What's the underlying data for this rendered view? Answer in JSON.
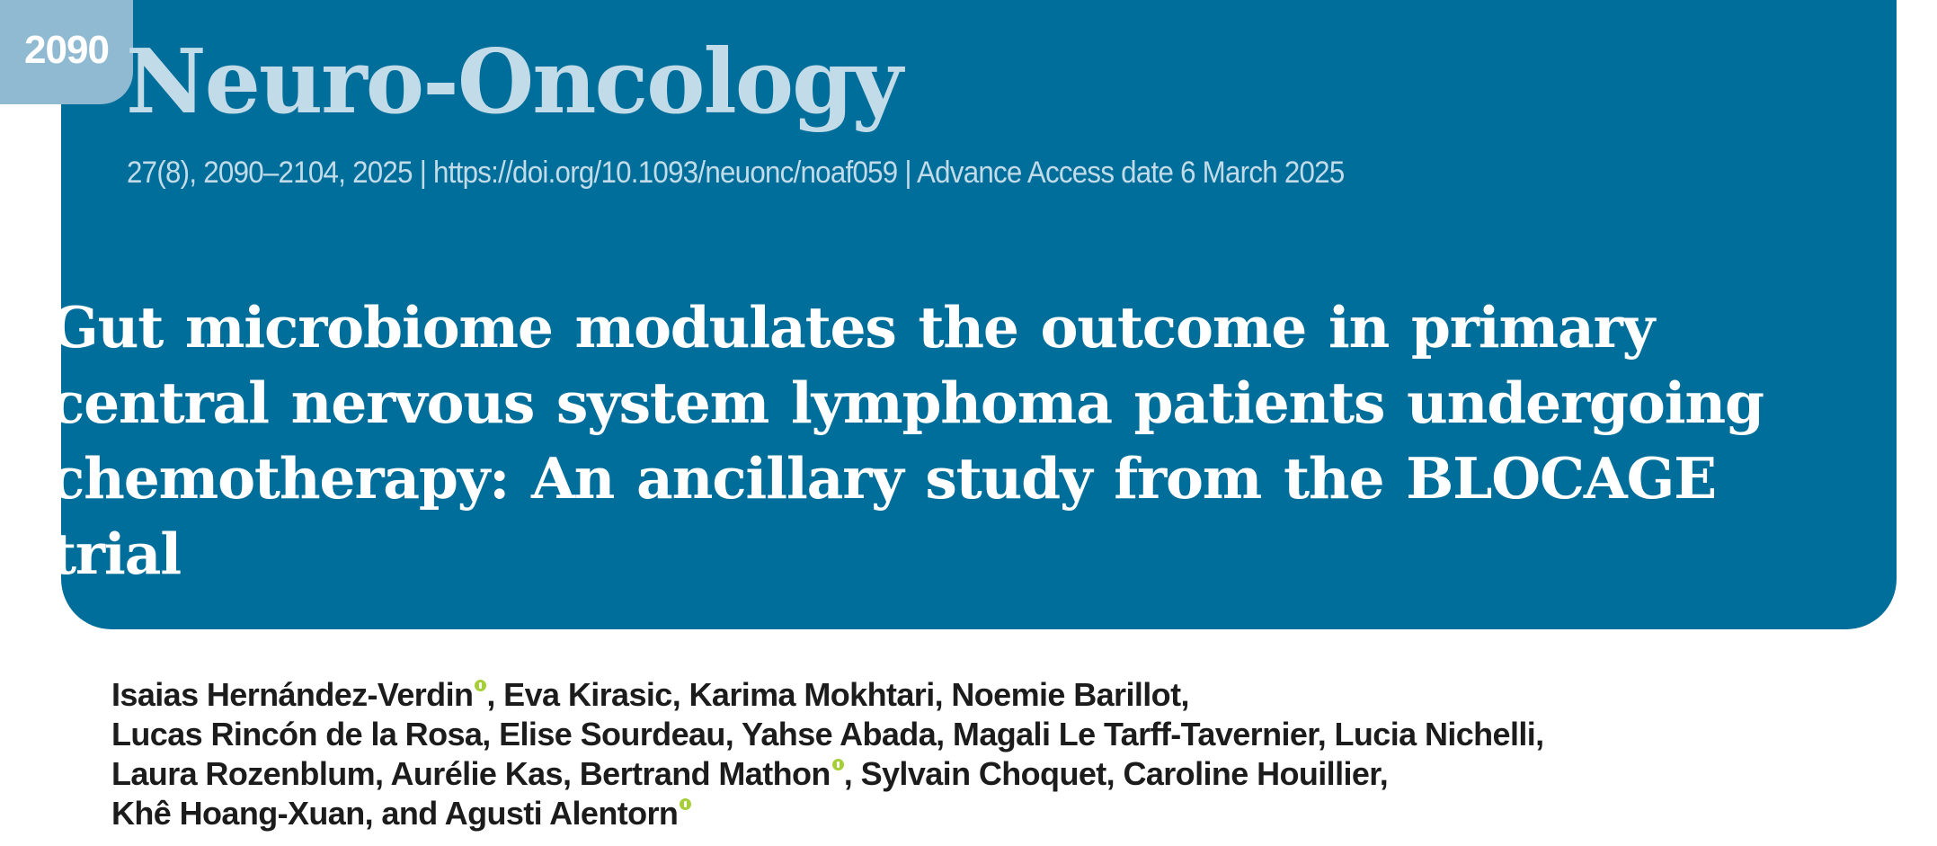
{
  "page": {
    "number": "2090"
  },
  "header": {
    "journal_title": "Neuro-Oncology",
    "citation": "27(8), 2090–2104, 2025 | https://doi.org/10.1093/neuonc/noaf059 | Advance Access date 6 March 2025"
  },
  "article": {
    "title": "Gut microbiome modulates the outcome in primary central nervous system lymphoma patients undergoing chemotherapy: An ancillary study from the BLOCAGE trial"
  },
  "authors": {
    "line1": {
      "a": "Isaias Hernández-Verdin",
      "b": ", Eva Kirasic, Karima Mokhtari, Noemie Barillot,"
    },
    "line2": "Lucas Rincón de la Rosa, Elise Sourdeau, Yahse Abada, Magali Le Tarff-Tavernier, Lucia Nichelli,",
    "line3": {
      "a": "Laura Rozenblum, Aurélie Kas, Bertrand Mathon",
      "b": ", Sylvain Choquet, Caroline Houillier,"
    },
    "line4": {
      "a": "Khê Hoang-Xuan, and Agusti Alentorn"
    }
  },
  "colors": {
    "banner": "#006e9a",
    "page_tab": "#8fbad2",
    "journal_title": "#c2dbe8",
    "orcid": "#a6ce39"
  },
  "icons": {
    "orcid": "orcid-icon"
  }
}
